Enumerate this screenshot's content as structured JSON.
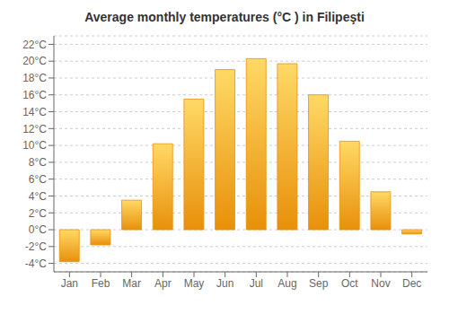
{
  "chart_data": {
    "type": "bar",
    "title": "Average monthly temperatures (°C ) in Filipeşti",
    "categories": [
      "Jan",
      "Feb",
      "Mar",
      "Apr",
      "May",
      "Jun",
      "Jul",
      "Aug",
      "Sep",
      "Oct",
      "Nov",
      "Dec"
    ],
    "values": [
      -3.8,
      -1.8,
      3.5,
      10.2,
      15.5,
      19.0,
      20.3,
      19.7,
      16.0,
      10.5,
      4.5,
      -0.5
    ],
    "color": "#E8900A",
    "ylim": [
      -5,
      23
    ],
    "yticks": [
      {
        "value": -4,
        "label": "-4°C"
      },
      {
        "value": -2,
        "label": "-2°C"
      },
      {
        "value": 0,
        "label": "0°C"
      },
      {
        "value": 2,
        "label": "2°C"
      },
      {
        "value": 4,
        "label": "4°C"
      },
      {
        "value": 6,
        "label": "6°C"
      },
      {
        "value": 8,
        "label": "8°C"
      },
      {
        "value": 10,
        "label": "10°C"
      },
      {
        "value": 12,
        "label": "12°C"
      },
      {
        "value": 14,
        "label": "14°C"
      },
      {
        "value": 16,
        "label": "16°C"
      },
      {
        "value": 18,
        "label": "18°C"
      },
      {
        "value": 20,
        "label": "20°C"
      },
      {
        "value": 22,
        "label": "22°C"
      }
    ],
    "grid": true
  }
}
